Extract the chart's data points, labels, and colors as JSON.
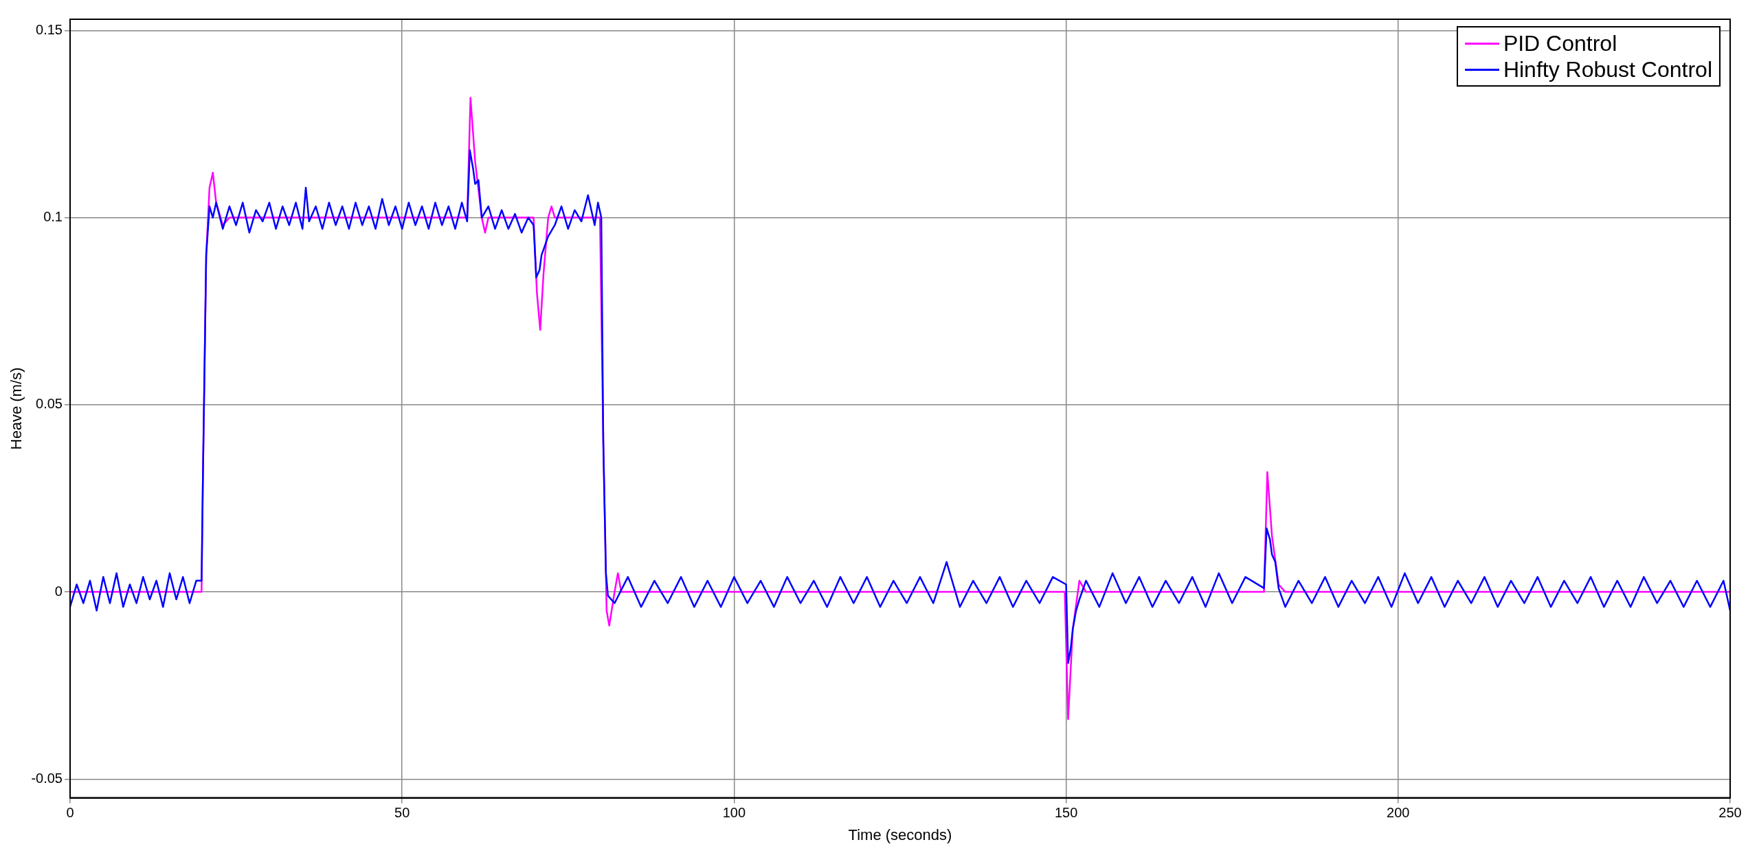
{
  "chart_data": {
    "type": "line",
    "xlabel": "Time (seconds)",
    "ylabel": "Heave (m/s)",
    "xlim": [
      0,
      250
    ],
    "xticks": [
      0,
      50,
      100,
      150,
      200,
      250
    ],
    "ylim": [
      -0.055,
      0.153
    ],
    "yticks": [
      {
        "value": -0.05,
        "label": "-0.05"
      },
      0,
      0.05,
      0.1,
      0.15
    ],
    "grid": true,
    "legend": "top right",
    "marker": "none",
    "line_style": "solid",
    "series": [
      {
        "name": "PID Control",
        "color": "#ff00ff",
        "x": [
          0,
          19.8,
          20,
          20.5,
          21,
          21.5,
          22,
          23,
          24,
          59.8,
          60.3,
          61,
          62,
          62.5,
          63,
          69.8,
          70.3,
          70.8,
          71.3,
          72,
          72.5,
          73,
          79.8,
          80.3,
          80.8,
          81.2,
          82,
          82.5,
          83,
          149.8,
          150.3,
          151,
          152,
          153,
          179.8,
          180.3,
          181,
          182,
          183,
          250
        ],
        "values": [
          0,
          0,
          0.03,
          0.09,
          0.108,
          0.112,
          0.104,
          0.098,
          0.1,
          0.1,
          0.132,
          0.115,
          0.1,
          0.096,
          0.1,
          0.1,
          0.08,
          0.07,
          0.085,
          0.1,
          0.103,
          0.1,
          0.1,
          0.04,
          -0.005,
          -0.009,
          0,
          0.005,
          0,
          0,
          -0.034,
          -0.01,
          0.003,
          0,
          0,
          0.032,
          0.015,
          0.002,
          0,
          0
        ]
      },
      {
        "name": "Hinfty Robust Control",
        "color": "#0000ff",
        "x": [
          0,
          1,
          2,
          3,
          4,
          5,
          6,
          7,
          8,
          9,
          10,
          11,
          12,
          13,
          14,
          15,
          16,
          17,
          18,
          19,
          19.8,
          20,
          20.5,
          21,
          21.5,
          22,
          23,
          24,
          25,
          26,
          27,
          28,
          29,
          30,
          31,
          32,
          33,
          34,
          35,
          35.5,
          36,
          37,
          38,
          39,
          40,
          41,
          42,
          43,
          44,
          45,
          46,
          47,
          48,
          49,
          50,
          51,
          52,
          53,
          54,
          55,
          56,
          57,
          58,
          59,
          59.8,
          60.2,
          60.7,
          61,
          61.5,
          62,
          63,
          64,
          65,
          66,
          67,
          68,
          69,
          69.8,
          70.2,
          70.7,
          71,
          72,
          73,
          74,
          75,
          76,
          77,
          78,
          79,
          79.5,
          80,
          80.3,
          80.7,
          81,
          82,
          84,
          86,
          88,
          90,
          92,
          94,
          96,
          98,
          100,
          102,
          104,
          106,
          108,
          110,
          112,
          114,
          116,
          118,
          120,
          122,
          124,
          126,
          128,
          130,
          132,
          134,
          136,
          138,
          140,
          142,
          144,
          146,
          148,
          150,
          150.3,
          150.7,
          151,
          151.5,
          152,
          153,
          155,
          157,
          159,
          161,
          163,
          165,
          167,
          169,
          171,
          173,
          175,
          177,
          179.8,
          180.2,
          180.7,
          181,
          181.5,
          182,
          183,
          185,
          187,
          189,
          191,
          193,
          195,
          197,
          199,
          201,
          203,
          205,
          207,
          209,
          211,
          213,
          215,
          217,
          219,
          221,
          223,
          225,
          227,
          229,
          231,
          233,
          235,
          237,
          239,
          241,
          243,
          245,
          247,
          249,
          250
        ],
        "values": [
          -0.004,
          0.002,
          -0.003,
          0.003,
          -0.005,
          0.004,
          -0.003,
          0.005,
          -0.004,
          0.002,
          -0.003,
          0.004,
          -0.002,
          0.003,
          -0.004,
          0.005,
          -0.002,
          0.004,
          -0.003,
          0.003,
          0.003,
          0.03,
          0.09,
          0.103,
          0.1,
          0.104,
          0.097,
          0.103,
          0.098,
          0.104,
          0.096,
          0.102,
          0.099,
          0.104,
          0.097,
          0.103,
          0.098,
          0.104,
          0.097,
          0.108,
          0.099,
          0.103,
          0.097,
          0.104,
          0.098,
          0.103,
          0.097,
          0.104,
          0.098,
          0.103,
          0.097,
          0.105,
          0.098,
          0.103,
          0.097,
          0.104,
          0.098,
          0.103,
          0.097,
          0.104,
          0.098,
          0.103,
          0.097,
          0.104,
          0.099,
          0.118,
          0.113,
          0.109,
          0.11,
          0.1,
          0.103,
          0.097,
          0.102,
          0.097,
          0.101,
          0.096,
          0.1,
          0.098,
          0.084,
          0.086,
          0.09,
          0.095,
          0.098,
          0.103,
          0.097,
          0.102,
          0.099,
          0.106,
          0.098,
          0.104,
          0.1,
          0.04,
          0.005,
          -0.001,
          -0.003,
          0.004,
          -0.004,
          0.003,
          -0.003,
          0.004,
          -0.004,
          0.003,
          -0.004,
          0.004,
          -0.003,
          0.003,
          -0.004,
          0.004,
          -0.003,
          0.003,
          -0.004,
          0.004,
          -0.003,
          0.004,
          -0.004,
          0.003,
          -0.003,
          0.004,
          -0.003,
          0.008,
          -0.004,
          0.003,
          -0.003,
          0.004,
          -0.004,
          0.003,
          -0.003,
          0.004,
          0.002,
          -0.019,
          -0.015,
          -0.01,
          -0.005,
          -0.002,
          0.003,
          -0.004,
          0.005,
          -0.003,
          0.004,
          -0.004,
          0.003,
          -0.003,
          0.004,
          -0.004,
          0.005,
          -0.003,
          0.004,
          0.001,
          0.017,
          0.014,
          0.01,
          0.008,
          0.001,
          -0.004,
          0.003,
          -0.003,
          0.004,
          -0.004,
          0.003,
          -0.003,
          0.004,
          -0.004,
          0.005,
          -0.003,
          0.004,
          -0.004,
          0.003,
          -0.003,
          0.004,
          -0.004,
          0.003,
          -0.003,
          0.004,
          -0.004,
          0.003,
          -0.003,
          0.004,
          -0.004,
          0.003,
          -0.004,
          0.004,
          -0.003,
          0.003,
          -0.004,
          0.003,
          -0.004,
          0.003,
          -0.005
        ]
      }
    ]
  }
}
